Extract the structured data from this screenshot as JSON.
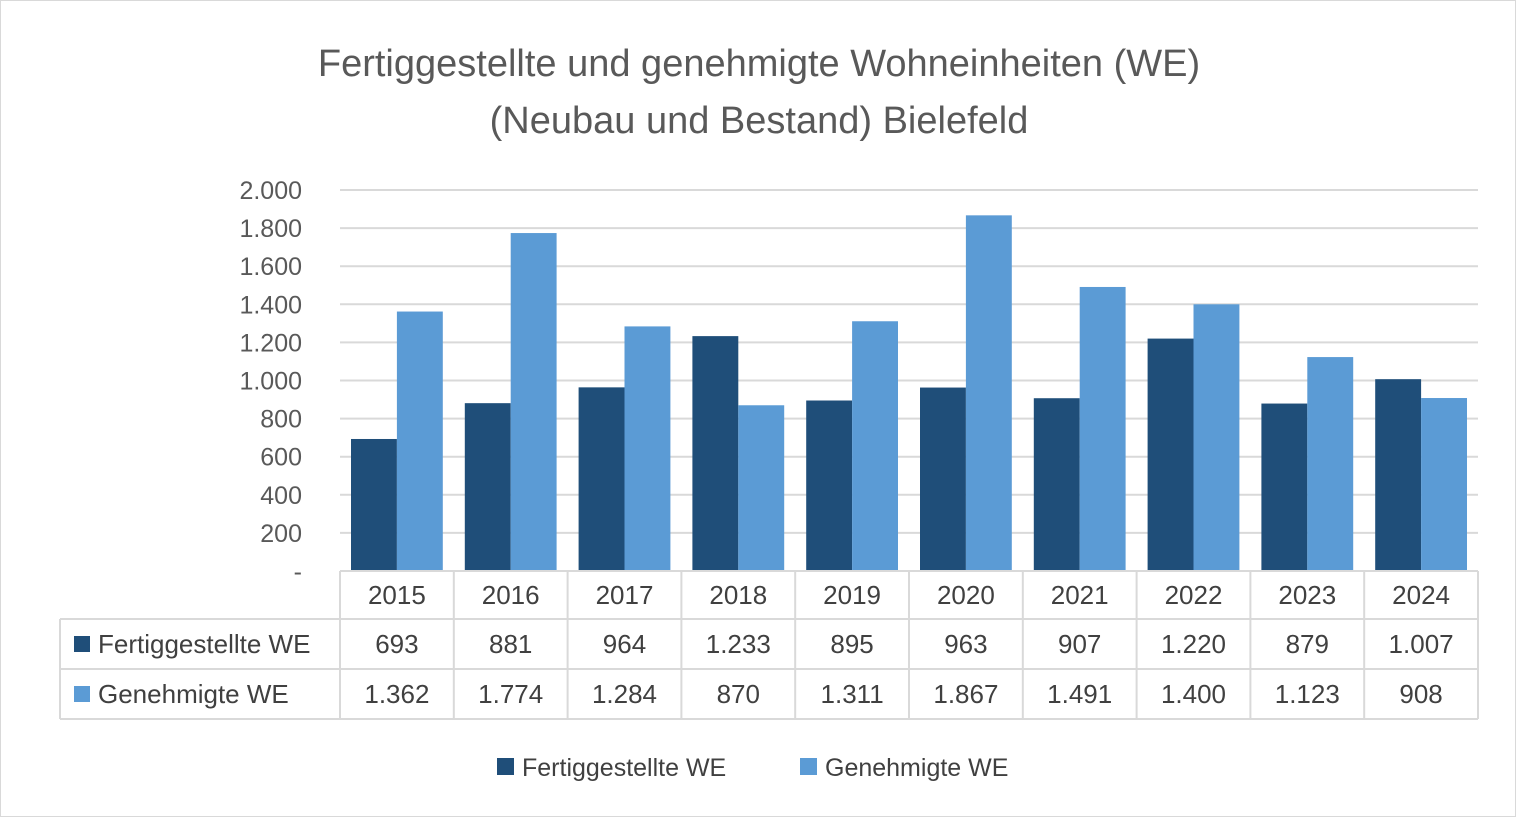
{
  "chart_data": {
    "type": "bar",
    "title": "Fertiggestellte und genehmigte Wohneinheiten (WE) (Neubau und Bestand) Bielefeld",
    "title_lines": [
      "Fertiggestellte und genehmigte Wohneinheiten (WE)",
      "(Neubau und Bestand) Bielefeld"
    ],
    "categories": [
      "2015",
      "2016",
      "2017",
      "2018",
      "2019",
      "2020",
      "2021",
      "2022",
      "2023",
      "2024"
    ],
    "series": [
      {
        "name": "Fertiggestellte WE",
        "color": "#1f4e79",
        "values": [
          693,
          881,
          964,
          1233,
          895,
          963,
          907,
          1220,
          879,
          1007
        ],
        "labels": [
          "693",
          "881",
          "964",
          "1.233",
          "895",
          "963",
          "907",
          "1.220",
          "879",
          "1.007"
        ]
      },
      {
        "name": "Genehmigte WE",
        "color": "#5b9bd5",
        "values": [
          1362,
          1774,
          1284,
          870,
          1311,
          1867,
          1491,
          1400,
          1123,
          908
        ],
        "labels": [
          "1.362",
          "1.774",
          "1.284",
          "870",
          "1.311",
          "1.867",
          "1.491",
          "1.400",
          "1.123",
          "908"
        ]
      }
    ],
    "y_ticks": [
      0,
      200,
      400,
      600,
      800,
      1000,
      1200,
      1400,
      1600,
      1800,
      2000
    ],
    "y_tick_labels": [
      "-",
      "200",
      "400",
      "600",
      "800",
      "1.000",
      "1.200",
      "1.400",
      "1.600",
      "1.800",
      "2.000"
    ],
    "ylim": [
      0,
      2000
    ],
    "xlabel": "",
    "ylabel": "",
    "grid": true,
    "legend_position": "bottom",
    "data_table": true
  }
}
